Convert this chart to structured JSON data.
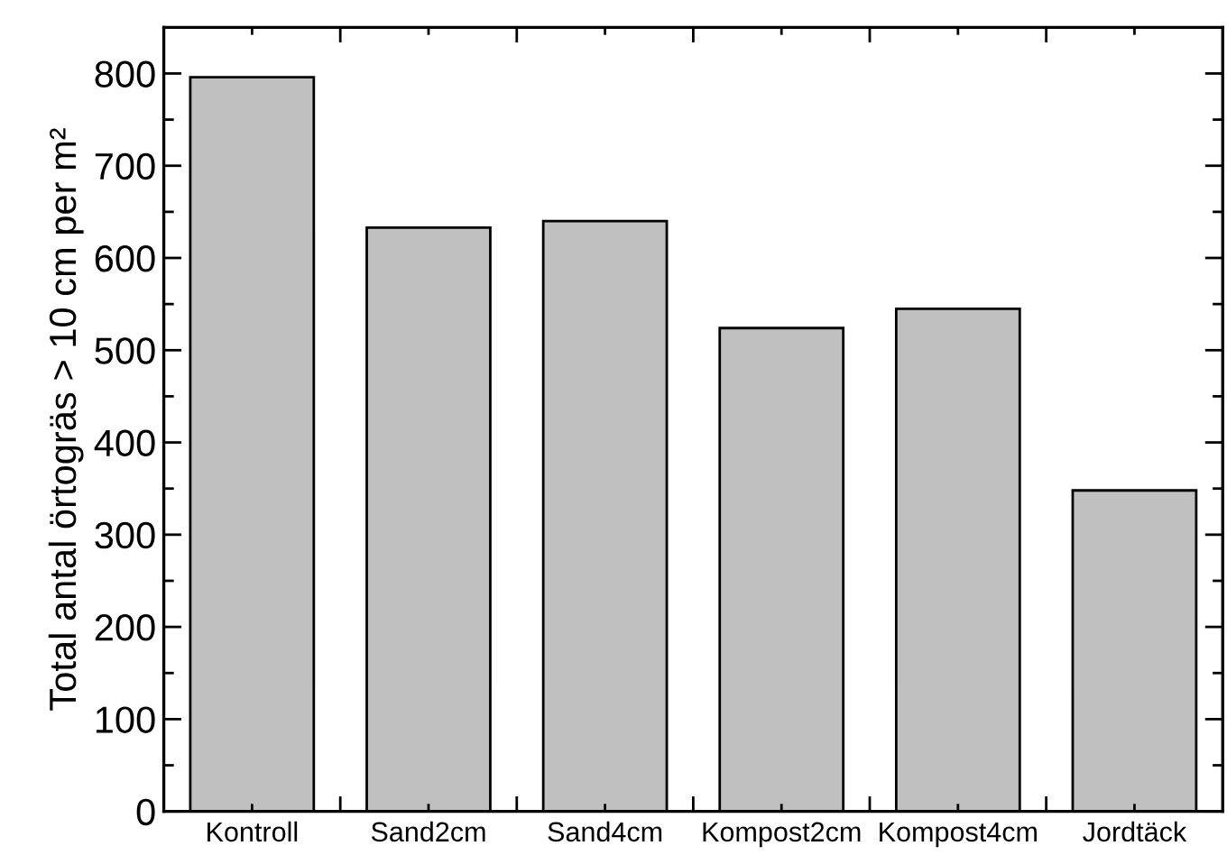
{
  "chart_data": {
    "type": "bar",
    "ylabel": "Total antal örtogräs > 10 cm per m²",
    "categories": [
      "Kontroll",
      "Sand2cm",
      "Sand4cm",
      "Kompost2cm",
      "Kompost4cm",
      "Jordtäck"
    ],
    "values": [
      796,
      633,
      640,
      524,
      545,
      348
    ],
    "color": "#c0c0c0",
    "ylim": [
      0,
      850
    ],
    "yticks": [
      0,
      100,
      200,
      300,
      400,
      500,
      600,
      700,
      800
    ]
  }
}
